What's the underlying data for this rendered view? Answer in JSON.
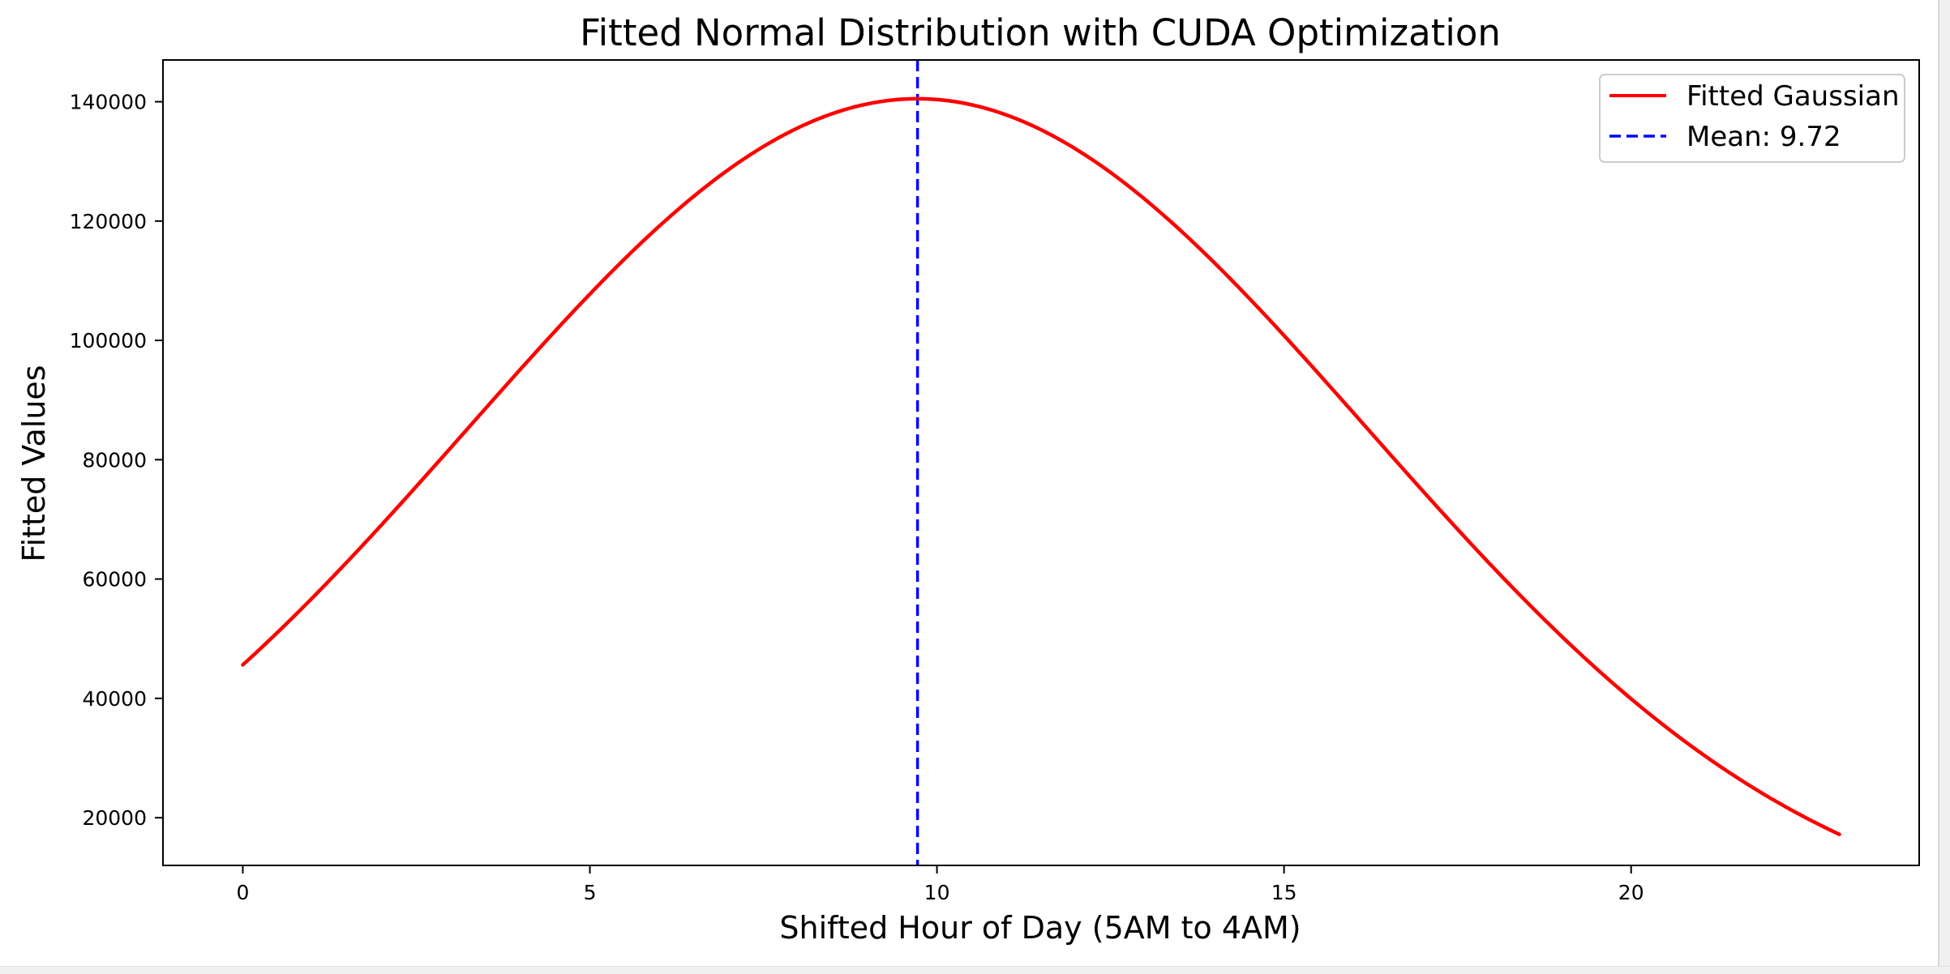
{
  "chart_data": {
    "type": "line",
    "title": "Fitted Normal Distribution with CUDA Optimization",
    "xlabel": "Shifted Hour of Day (5AM to 4AM)",
    "ylabel": "Fitted Values",
    "xlim": [
      -1.15,
      24.15
    ],
    "ylim": [
      12000,
      147000
    ],
    "xticks": [
      0,
      5,
      10,
      15,
      20
    ],
    "yticks": [
      20000,
      40000,
      60000,
      80000,
      100000,
      120000,
      140000
    ],
    "grid": false,
    "legend_position": "top-right",
    "series": [
      {
        "name": "Fitted Gaussian",
        "kind": "gaussian",
        "color": "#ff0000",
        "amplitude": 140500,
        "mean": 9.72,
        "sigma": 6.48,
        "x_range": [
          0,
          23
        ]
      }
    ],
    "vlines": [
      {
        "name": "Mean: 9.72",
        "x": 9.72,
        "color": "#0000ff",
        "style": "dashed"
      }
    ]
  }
}
